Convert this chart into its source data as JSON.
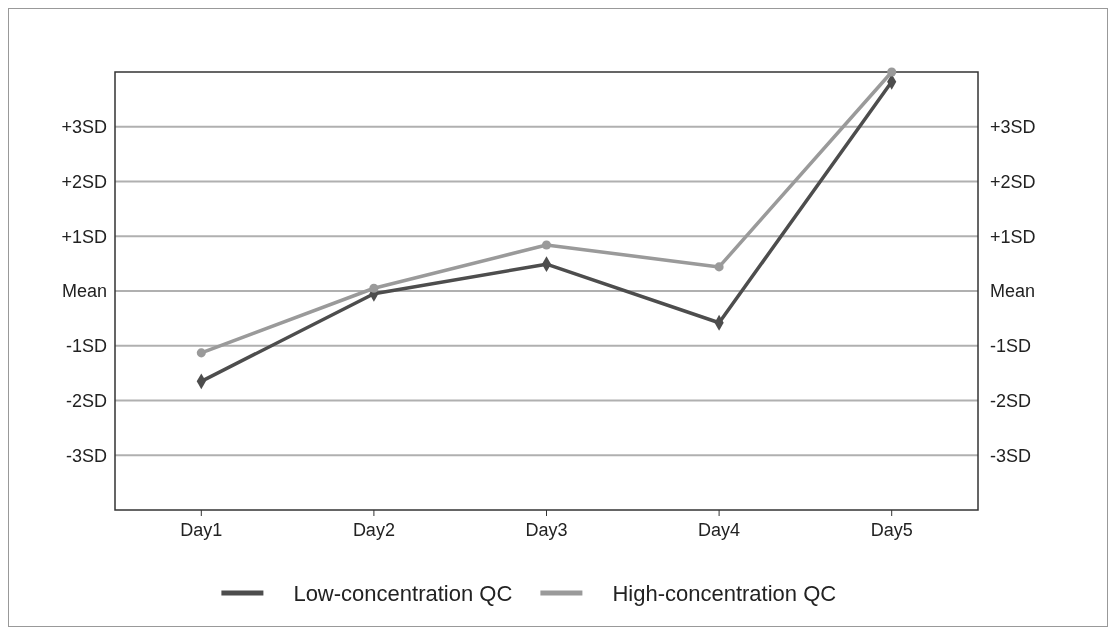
{
  "chart_data": {
    "type": "line",
    "categories": [
      "Day1",
      "Day2",
      "Day3",
      "Day4",
      "Day5"
    ],
    "series": [
      {
        "name": "Low-concentration QC",
        "color": "#4d4d4d",
        "marker": "diamond",
        "values": [
          -1.65,
          -0.05,
          0.49,
          -0.58,
          3.82
        ]
      },
      {
        "name": "High-concentration QC",
        "color": "#9a9a9a",
        "marker": "circle",
        "values": [
          -1.13,
          0.05,
          0.84,
          0.44,
          4.0
        ]
      }
    ],
    "ylim": [
      -4,
      4
    ],
    "yticks": [
      {
        "value": -3,
        "label": "-3SD"
      },
      {
        "value": -2,
        "label": "-2SD"
      },
      {
        "value": -1,
        "label": "-1SD"
      },
      {
        "value": 0,
        "label": "Mean"
      },
      {
        "value": 1,
        "label": "+1SD"
      },
      {
        "value": 2,
        "label": "+2SD"
      },
      {
        "value": 3,
        "label": "+3SD"
      }
    ],
    "y2lim": [
      -4,
      4
    ],
    "y2ticks": [
      {
        "value": -3,
        "label": "-3SD"
      },
      {
        "value": -2,
        "label": "-2SD"
      },
      {
        "value": -1,
        "label": "-1SD"
      },
      {
        "value": 0,
        "label": "Mean"
      },
      {
        "value": 1,
        "label": "+1SD"
      },
      {
        "value": 2,
        "label": "+2SD"
      },
      {
        "value": 3,
        "label": "+3SD"
      }
    ],
    "grid": "y",
    "legend": "bottom",
    "line_style": "solid"
  }
}
